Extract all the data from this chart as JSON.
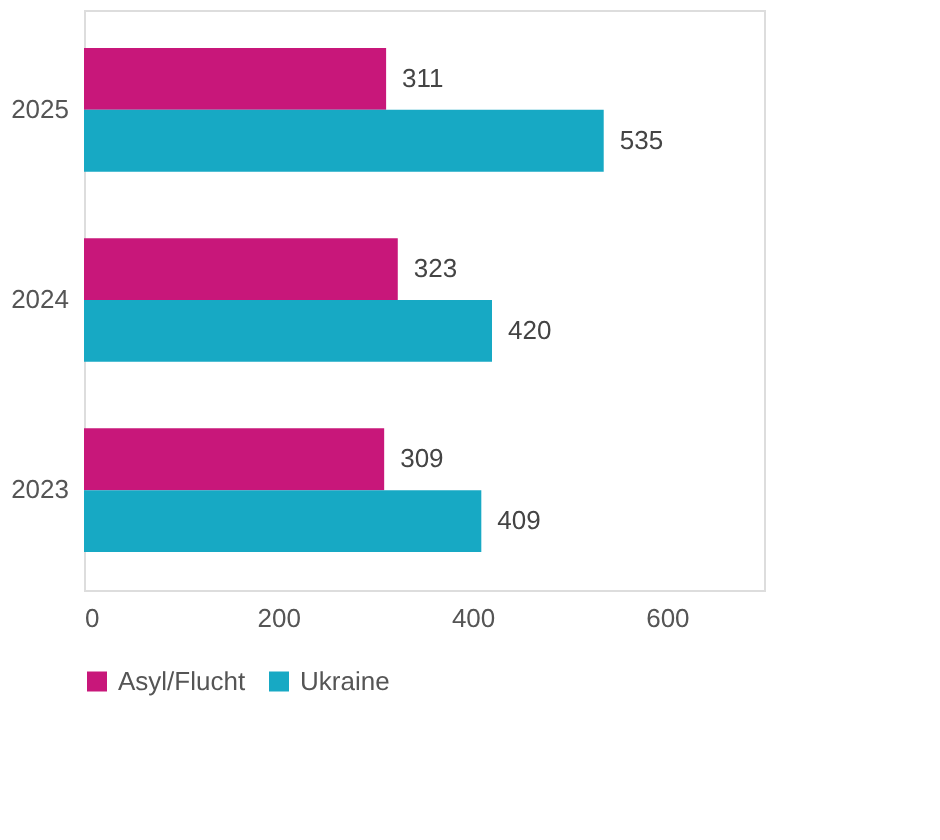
{
  "chart_data": {
    "type": "bar",
    "orientation": "horizontal",
    "categories": [
      "2025",
      "2024",
      "2023"
    ],
    "series": [
      {
        "name": "Asyl/Flucht",
        "color": "#c8177a",
        "values": [
          311,
          323,
          309
        ]
      },
      {
        "name": "Ukraine",
        "color": "#17a9c4",
        "values": [
          535,
          420,
          409
        ]
      }
    ],
    "xlim": [
      0,
      700
    ],
    "xticks": [
      0,
      200,
      400,
      600
    ],
    "grid": false,
    "legend": "bottom",
    "data_labels": true
  }
}
